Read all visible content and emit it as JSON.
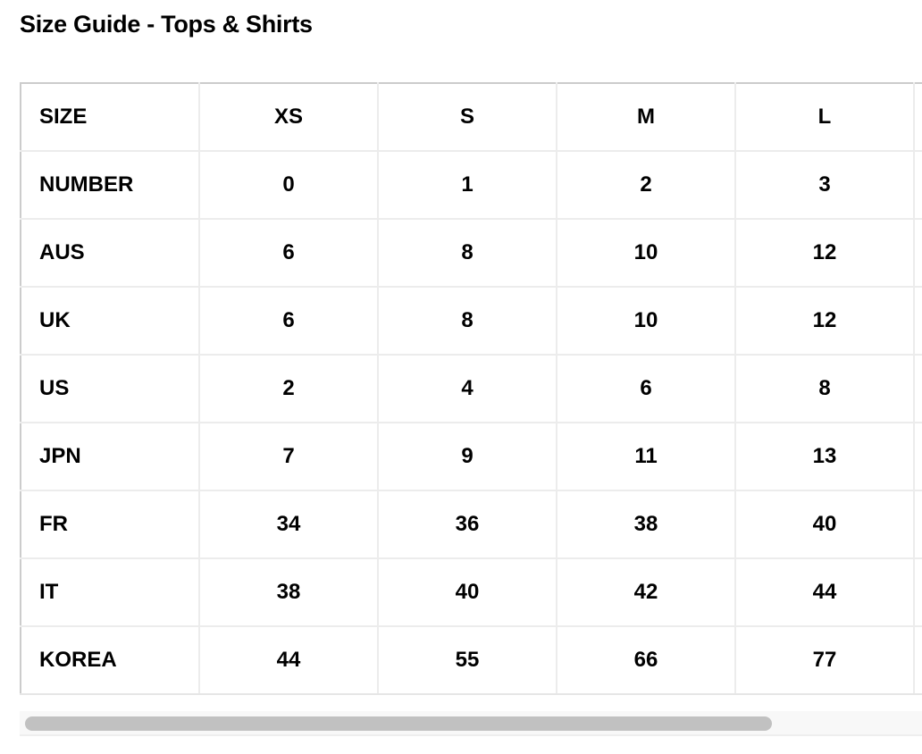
{
  "title": "Size Guide - Tops & Shirts",
  "table": {
    "rows": [
      [
        "SIZE",
        "XS",
        "S",
        "M",
        "L"
      ],
      [
        "NUMBER",
        "0",
        "1",
        "2",
        "3"
      ],
      [
        "AUS",
        "6",
        "8",
        "10",
        "12"
      ],
      [
        "UK",
        "6",
        "8",
        "10",
        "12"
      ],
      [
        "US",
        "2",
        "4",
        "6",
        "8"
      ],
      [
        "JPN",
        "7",
        "9",
        "11",
        "13"
      ],
      [
        "FR",
        "34",
        "36",
        "38",
        "40"
      ],
      [
        "IT",
        "38",
        "40",
        "42",
        "44"
      ],
      [
        "KOREA",
        "44",
        "55",
        "66",
        "77"
      ]
    ]
  },
  "scrollbar": {
    "position_percent": 0,
    "visible_fraction": 0.83
  }
}
